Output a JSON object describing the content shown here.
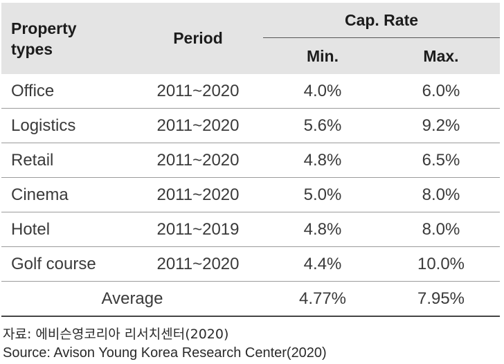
{
  "table": {
    "headers": {
      "property_types_line1": "Property",
      "property_types_line2": "types",
      "period": "Period",
      "cap_rate": "Cap. Rate",
      "min": "Min.",
      "max": "Max."
    },
    "rows": [
      {
        "type": "Office",
        "period": "2011~2020",
        "min": "4.0%",
        "max": "6.0%"
      },
      {
        "type": "Logistics",
        "period": "2011~2020",
        "min": "5.6%",
        "max": "9.2%"
      },
      {
        "type": "Retail",
        "period": "2011~2020",
        "min": "4.8%",
        "max": "6.5%"
      },
      {
        "type": "Cinema",
        "period": "2011~2020",
        "min": "5.0%",
        "max": "8.0%"
      },
      {
        "type": "Hotel",
        "period": "2011~2019",
        "min": "4.8%",
        "max": "8.0%"
      },
      {
        "type": "Golf course",
        "period": "2011~2020",
        "min": "4.4%",
        "max": "10.0%"
      }
    ],
    "average": {
      "label": "Average",
      "min": "4.77%",
      "max": "7.95%"
    }
  },
  "source": {
    "korean": "자료: 에비슨영코리아 리서치센터(2020)",
    "english": "Source: Avison Young Korea Research Center(2020)"
  },
  "colors": {
    "header_bg": "#e4e4e4",
    "text": "#3a3a3a",
    "rule": "#9a9a9a"
  }
}
